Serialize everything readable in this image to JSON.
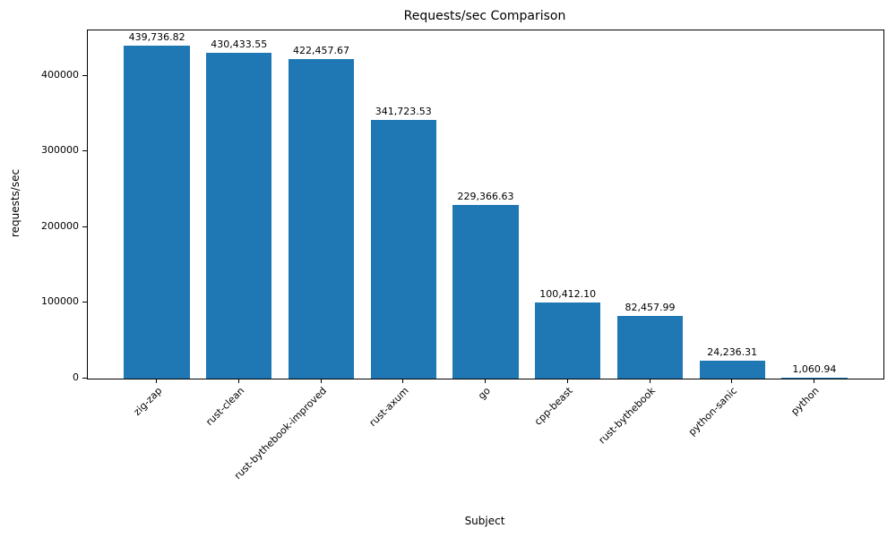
{
  "chart_data": {
    "type": "bar",
    "title": "Requests/sec Comparison",
    "xlabel": "Subject",
    "ylabel": "requests/sec",
    "categories": [
      "zig-zap",
      "rust-clean",
      "rust-bythebook-improved",
      "rust-axum",
      "go",
      "cpp-beast",
      "rust-bythebook",
      "python-sanic",
      "python"
    ],
    "values": [
      439736.82,
      430433.55,
      422457.67,
      341723.53,
      229366.63,
      100412.1,
      82457.99,
      24236.31,
      1060.94
    ],
    "bar_labels": [
      "439,736.82",
      "430,433.55",
      "422,457.67",
      "341,723.53",
      "229,366.63",
      "100,412.10",
      "82,457.99",
      "24,236.31",
      "1,060.94"
    ],
    "yticks": [
      0,
      100000,
      200000,
      300000,
      400000
    ],
    "ylim": [
      0,
      460000
    ],
    "bar_color": "#1f77b4",
    "grid": false,
    "legend": "none"
  }
}
